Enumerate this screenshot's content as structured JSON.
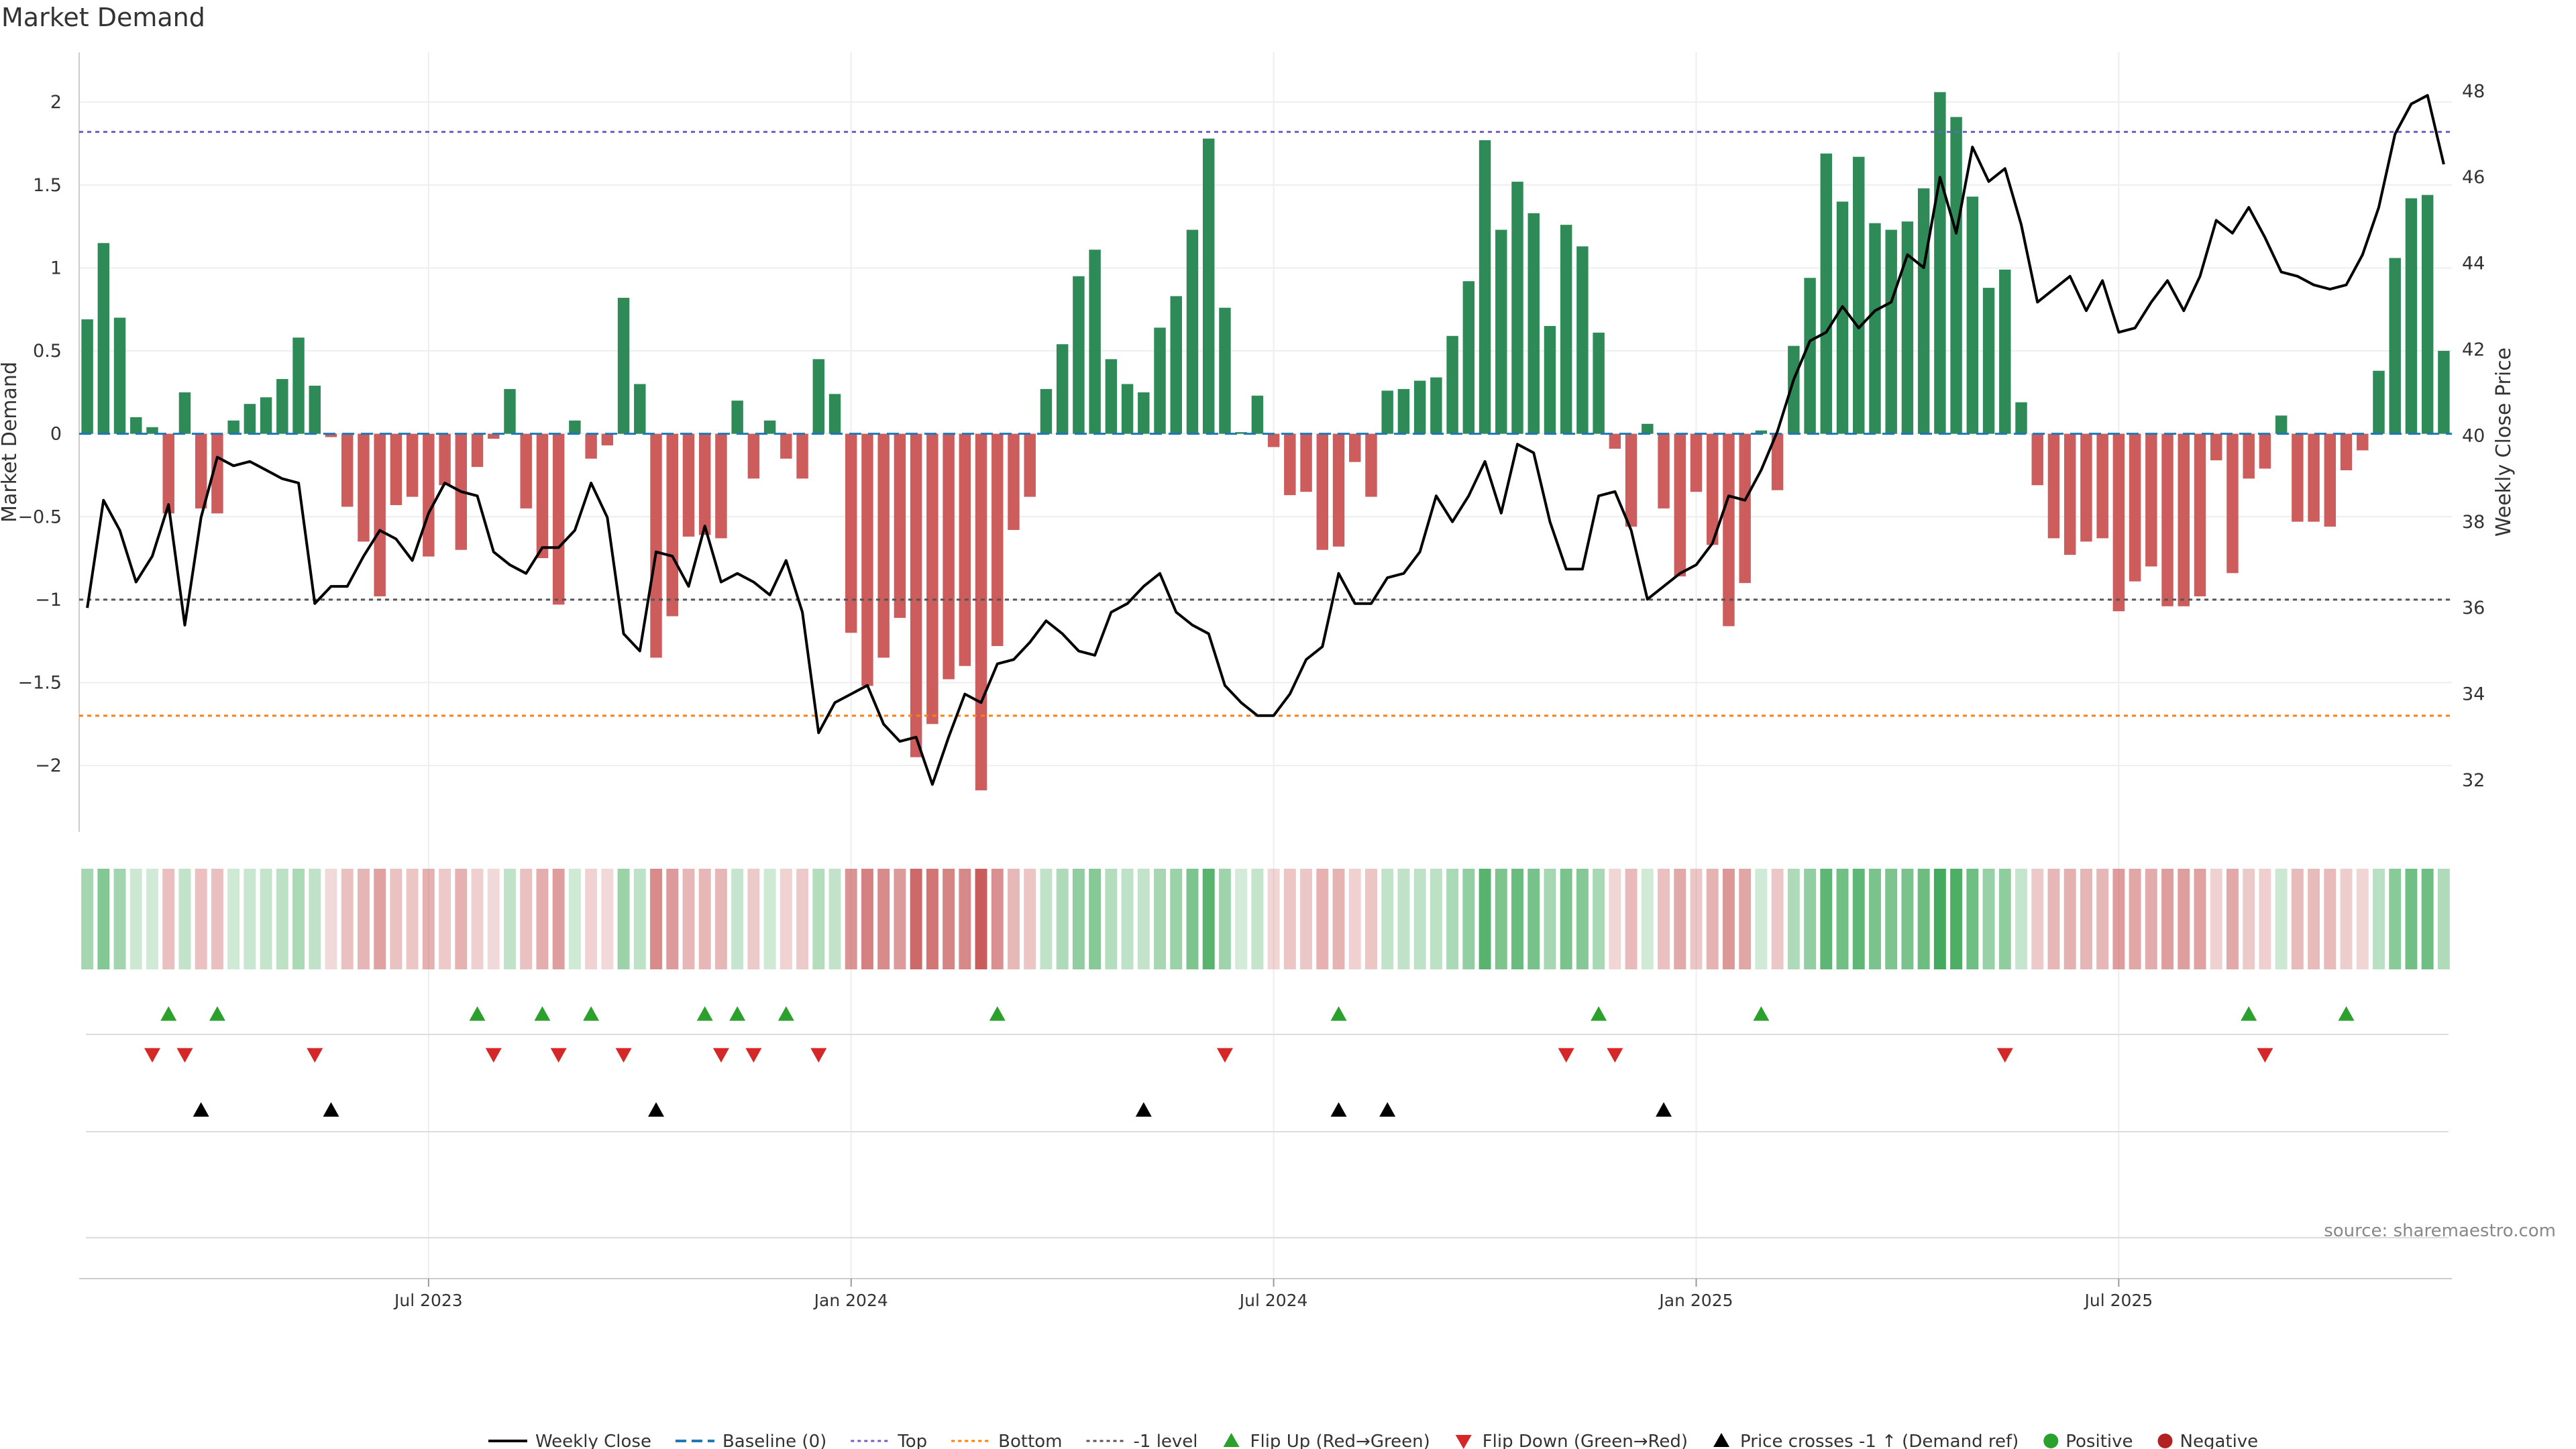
{
  "chart_data": {
    "type": "bar",
    "title": "Market Demand",
    "ylabel": "Market Demand",
    "y2label": "Weekly Close Price",
    "ylim": [
      -2.4,
      2.3
    ],
    "y2lim": [
      30.8,
      48.9
    ],
    "yticks": [
      2,
      1.5,
      1,
      0.5,
      0,
      -0.5,
      -1,
      -1.5,
      -2
    ],
    "ytick_labels": [
      "2",
      "1.5",
      "1",
      "0.5",
      "0",
      "−0.5",
      "−1",
      "−1.5",
      "−2"
    ],
    "y2ticks": [
      48,
      46,
      44,
      42,
      40,
      38,
      36,
      34,
      32
    ],
    "y2tick_labels": [
      "48",
      "46",
      "44",
      "42",
      "40",
      "38",
      "36",
      "34",
      "32"
    ],
    "xticks": [
      {
        "week": 21,
        "label": "Jul 2023"
      },
      {
        "week": 47,
        "label": "Jan 2024"
      },
      {
        "week": 73,
        "label": "Jul 2024"
      },
      {
        "week": 99,
        "label": "Jan 2025"
      },
      {
        "week": 125,
        "label": "Jul 2025"
      }
    ],
    "ref_lines": {
      "top": 1.82,
      "bottom": -1.7,
      "minus_one": -1,
      "baseline": 0
    },
    "demand": [
      0.69,
      1.15,
      0.7,
      0.1,
      0.04,
      -0.48,
      0.25,
      -0.45,
      -0.48,
      0.08,
      0.18,
      0.22,
      0.33,
      0.58,
      0.29,
      -0.02,
      -0.44,
      -0.65,
      -0.98,
      -0.43,
      -0.38,
      -0.74,
      -0.31,
      -0.7,
      -0.2,
      -0.03,
      0.27,
      -0.45,
      -0.75,
      -1.03,
      0.08,
      -0.15,
      -0.07,
      0.82,
      0.3,
      -1.35,
      -1.1,
      -0.62,
      -0.61,
      -0.63,
      0.2,
      -0.27,
      0.08,
      -0.15,
      -0.27,
      0.45,
      0.24,
      -1.2,
      -1.52,
      -1.35,
      -1.11,
      -1.95,
      -1.75,
      -1.48,
      -1.4,
      -2.15,
      -1.28,
      -0.58,
      -0.38,
      0.27,
      0.54,
      0.95,
      1.11,
      0.45,
      0.3,
      0.25,
      0.64,
      0.83,
      1.23,
      1.78,
      0.76,
      0.01,
      0.23,
      -0.08,
      -0.37,
      -0.35,
      -0.7,
      -0.68,
      -0.17,
      -0.38,
      0.26,
      0.27,
      0.32,
      0.34,
      0.59,
      0.92,
      1.77,
      1.23,
      1.52,
      1.33,
      0.65,
      1.26,
      1.13,
      0.61,
      -0.09,
      -0.56,
      0.06,
      -0.45,
      -0.86,
      -0.35,
      -0.67,
      -1.16,
      -0.9,
      0.02,
      -0.34,
      0.53,
      0.94,
      1.69,
      1.4,
      1.67,
      1.27,
      1.23,
      1.28,
      1.48,
      2.06,
      1.91,
      1.43,
      0.88,
      0.99,
      0.19,
      -0.31,
      -0.63,
      -0.73,
      -0.65,
      -0.63,
      -1.07,
      -0.89,
      -0.8,
      -1.04,
      -1.04,
      -0.98,
      -0.16,
      -0.84,
      -0.27,
      -0.21,
      0.11,
      -0.53,
      -0.53,
      -0.56,
      -0.22,
      -0.1,
      0.38,
      1.06,
      1.42,
      1.44,
      0.5
    ],
    "close": [
      36.0,
      38.5,
      37.8,
      36.6,
      37.2,
      38.4,
      35.6,
      38.1,
      39.5,
      39.3,
      39.4,
      39.2,
      39.0,
      38.9,
      36.1,
      36.5,
      36.5,
      37.2,
      37.8,
      37.6,
      37.1,
      38.2,
      38.9,
      38.7,
      38.6,
      37.3,
      37.0,
      36.8,
      37.4,
      37.4,
      37.8,
      38.9,
      38.1,
      35.4,
      35.0,
      37.3,
      37.2,
      36.5,
      37.9,
      36.6,
      36.8,
      36.6,
      36.3,
      37.1,
      35.9,
      33.1,
      33.8,
      34.0,
      34.2,
      33.3,
      32.9,
      33.0,
      31.9,
      33.0,
      34.0,
      33.8,
      34.7,
      34.8,
      35.2,
      35.7,
      35.4,
      35.0,
      34.9,
      35.9,
      36.1,
      36.5,
      36.8,
      35.9,
      35.6,
      35.4,
      34.2,
      33.8,
      33.5,
      33.5,
      34.0,
      34.8,
      35.1,
      36.8,
      36.1,
      36.1,
      36.7,
      36.8,
      37.3,
      38.6,
      38.0,
      38.6,
      39.4,
      38.2,
      39.8,
      39.6,
      38.0,
      36.9,
      36.9,
      38.6,
      38.7,
      37.8,
      36.2,
      36.5,
      36.8,
      37.0,
      37.5,
      38.6,
      38.5,
      39.2,
      40.1,
      41.3,
      42.2,
      42.4,
      43.0,
      42.5,
      42.9,
      43.1,
      44.2,
      43.9,
      46.0,
      44.7,
      46.7,
      45.9,
      46.2,
      44.9,
      43.1,
      43.4,
      43.7,
      42.9,
      43.6,
      42.4,
      42.5,
      43.1,
      43.6,
      42.9,
      43.7,
      45.0,
      44.7,
      45.3,
      44.6,
      43.8,
      43.7,
      43.5,
      43.4,
      43.5,
      44.2,
      45.3,
      47.0,
      47.7,
      47.9,
      46.3
    ],
    "flip_up_weeks": [
      5,
      8,
      24,
      28,
      31,
      38,
      40,
      43,
      56,
      77,
      93,
      103,
      133,
      139
    ],
    "flip_down_weeks": [
      4,
      6,
      14,
      25,
      29,
      33,
      39,
      41,
      45,
      70,
      91,
      94,
      118,
      134
    ],
    "price_cross_weeks": [
      7,
      15,
      35,
      65,
      77,
      80,
      97
    ],
    "legend": [
      {
        "label": "Weekly Close",
        "symbol": "line",
        "color": "#000000"
      },
      {
        "label": "Baseline (0)",
        "symbol": "dash",
        "color": "#1f77b4"
      },
      {
        "label": "Top",
        "symbol": "dot",
        "color": "#6c5fc7"
      },
      {
        "label": "Bottom",
        "symbol": "dot",
        "color": "#ff7f0e"
      },
      {
        "label": "-1 level",
        "symbol": "dot",
        "color": "#555555"
      },
      {
        "label": "Flip Up (Red→Green)",
        "symbol": "tri-up",
        "color": "#2ca02c"
      },
      {
        "label": "Flip Down (Green→Red)",
        "symbol": "tri-down",
        "color": "#d62728"
      },
      {
        "label": "Price crosses -1 ↑ (Demand ref)",
        "symbol": "tri-up",
        "color": "#000000"
      },
      {
        "label": "Positive",
        "symbol": "circle",
        "color": "#2ca02c"
      },
      {
        "label": "Negative",
        "symbol": "circle",
        "color": "#b22222"
      }
    ],
    "source": "source: sharemaestro.com"
  },
  "colors": {
    "positive_bar": "#2e8b57",
    "negative_bar": "#cd5c5c",
    "strip_positive": "#3aa655",
    "strip_negative": "#c85a5a",
    "grid": "#eeeeee",
    "axis": "#cccccc"
  }
}
